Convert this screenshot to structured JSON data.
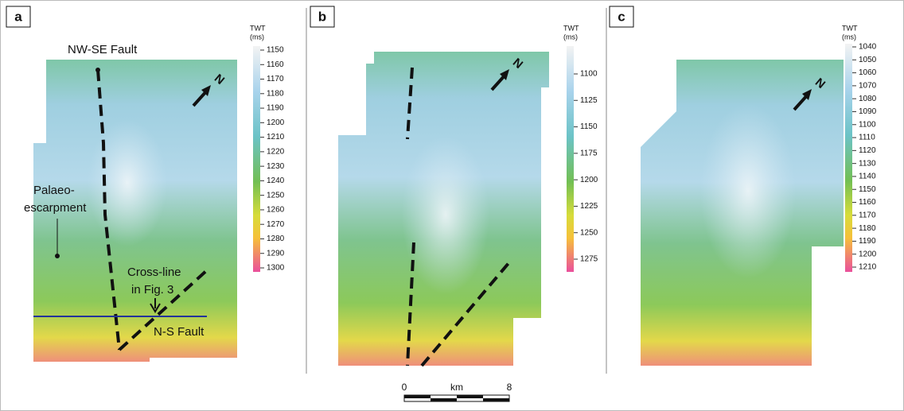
{
  "panels": [
    {
      "label": "a",
      "colorbar": {
        "title": [
          "TWT",
          "(ms)"
        ],
        "ticks": [
          1150,
          1160,
          1170,
          1180,
          1190,
          1200,
          1210,
          1220,
          1230,
          1240,
          1250,
          1260,
          1270,
          1280,
          1290,
          1300
        ]
      },
      "north": "N",
      "annotations": [
        "NW-SE Fault",
        "Palaeo-",
        "escarpment",
        "Cross-line",
        "in Fig. 3",
        "N-S Fault"
      ]
    },
    {
      "label": "b",
      "colorbar": {
        "title": [
          "TWT",
          "(ms)"
        ],
        "ticks": [
          1100,
          1125,
          1150,
          1175,
          1200,
          1225,
          1250,
          1275
        ]
      },
      "north": "N"
    },
    {
      "label": "c",
      "colorbar": {
        "title": [
          "TWT",
          "(ms)"
        ],
        "ticks": [
          1040,
          1050,
          1060,
          1070,
          1080,
          1090,
          1100,
          1110,
          1120,
          1130,
          1140,
          1150,
          1160,
          1170,
          1180,
          1190,
          1200,
          1210
        ]
      },
      "north": "N"
    }
  ],
  "scale_bar": {
    "start": "0",
    "unit": "km",
    "end": "8"
  }
}
